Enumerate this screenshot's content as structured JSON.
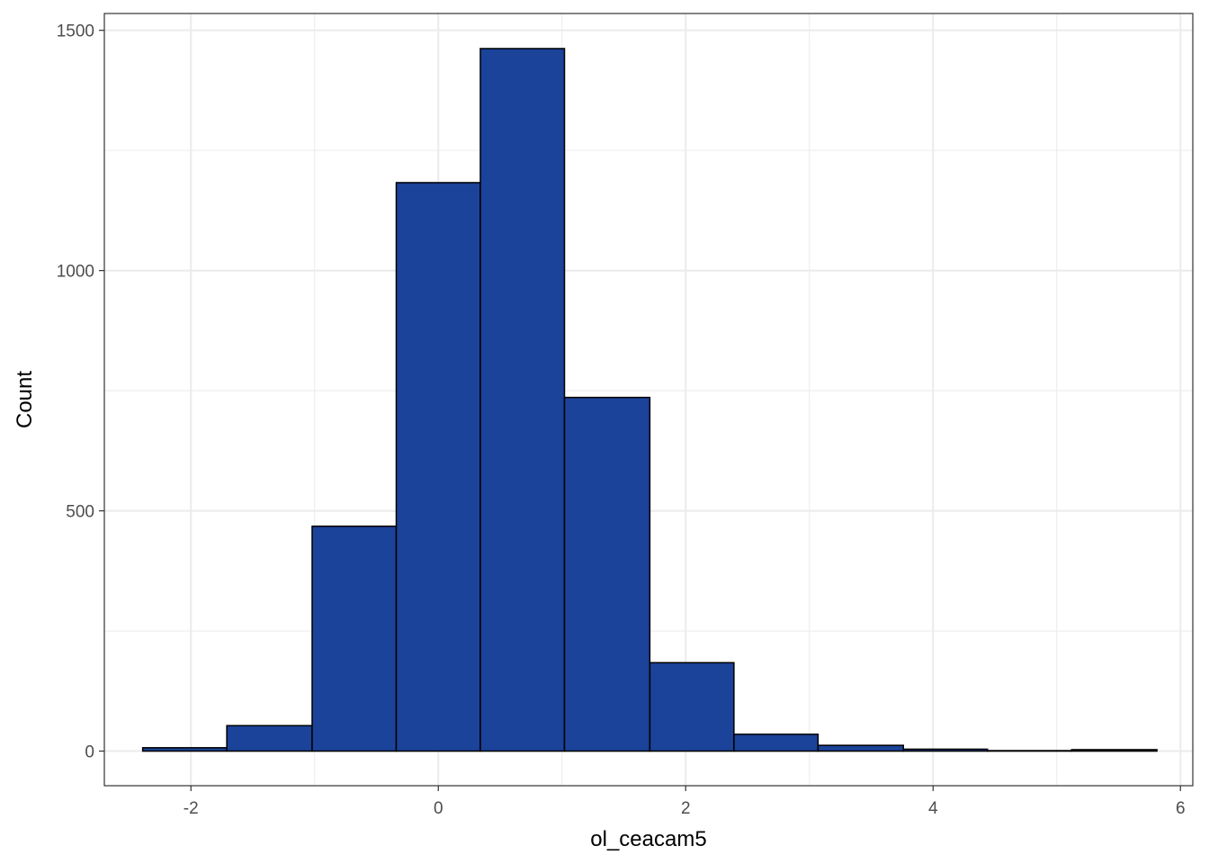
{
  "chart_data": {
    "type": "bar",
    "title": "",
    "xlabel": "ol_ceacam5",
    "ylabel": "Count",
    "xlim": [
      -2.7,
      6.1
    ],
    "ylim": [
      -72,
      1535
    ],
    "x_ticks": [
      -2,
      0,
      2,
      4,
      6
    ],
    "x_tick_labels": [
      "-2",
      "0",
      "2",
      "4",
      "6"
    ],
    "y_ticks": [
      0,
      500,
      1000,
      1500
    ],
    "y_tick_labels": [
      "0",
      "500",
      "1000",
      "1500"
    ],
    "grid": true,
    "bins": [
      {
        "x0": -2.39,
        "x1": -1.71,
        "count": 7
      },
      {
        "x0": -1.71,
        "x1": -1.02,
        "count": 53
      },
      {
        "x0": -1.02,
        "x1": -0.34,
        "count": 468
      },
      {
        "x0": -0.34,
        "x1": 0.34,
        "count": 1183
      },
      {
        "x0": 0.34,
        "x1": 1.02,
        "count": 1462
      },
      {
        "x0": 1.02,
        "x1": 1.71,
        "count": 736
      },
      {
        "x0": 1.71,
        "x1": 2.39,
        "count": 184
      },
      {
        "x0": 2.39,
        "x1": 3.07,
        "count": 35
      },
      {
        "x0": 3.07,
        "x1": 3.76,
        "count": 12
      },
      {
        "x0": 3.76,
        "x1": 4.44,
        "count": 4
      },
      {
        "x0": 4.44,
        "x1": 5.12,
        "count": 1
      },
      {
        "x0": 5.12,
        "x1": 5.81,
        "count": 3
      }
    ]
  },
  "colors": {
    "bar_fill": "#1a4399",
    "bar_stroke": "#000000",
    "grid": "#ebebeb",
    "panel_border": "#333333",
    "tick_text": "#4d4d4d"
  }
}
